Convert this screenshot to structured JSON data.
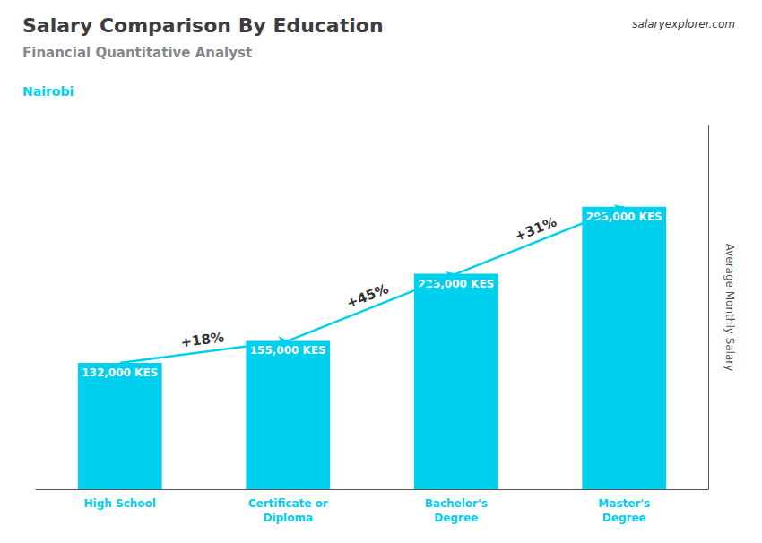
{
  "chart_data": {
    "type": "bar",
    "title": "Salary Comparison By Education",
    "subtitle": "Financial Quantitative Analyst",
    "location": "Nairobi",
    "source": "salaryexplorer.com",
    "ylabel": "Average Monthly Salary",
    "categories": [
      "High School",
      "Certificate or\nDiploma",
      "Bachelor's\nDegree",
      "Master's\nDegree"
    ],
    "values": [
      132000,
      155000,
      225000,
      295000
    ],
    "value_labels": [
      "132,000 KES",
      "155,000 KES",
      "225,000 KES",
      "295,000 KES"
    ],
    "data_labels": true,
    "color": "#00cfee",
    "ylim": [
      0,
      380000
    ],
    "tick_labels": "x",
    "grid": false,
    "annotations": [
      {
        "text": "+18%",
        "from": "High School",
        "to": "Certificate or\nDiploma"
      },
      {
        "text": "+45%",
        "from": "Certificate or\nDiploma",
        "to": "Bachelor's\nDegree"
      },
      {
        "text": "+31%",
        "from": "Bachelor's\nDegree",
        "to": "Master's\nDegree"
      }
    ]
  }
}
